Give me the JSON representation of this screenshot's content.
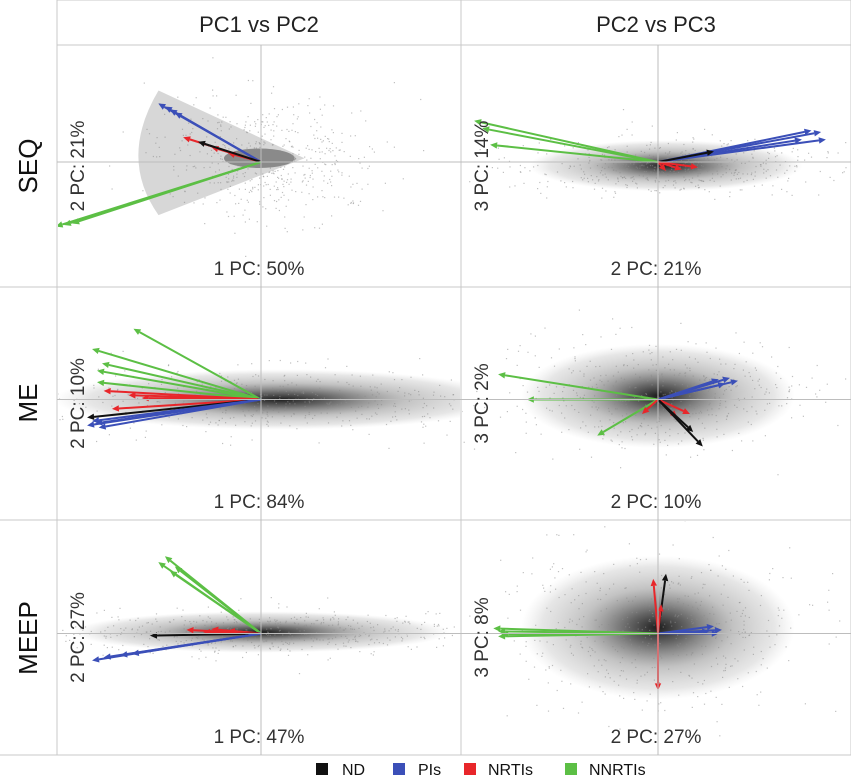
{
  "figure": {
    "columns": [
      "PC1 vs PC2",
      "PC2 vs PC3"
    ],
    "rows": [
      "SEQ",
      "ME",
      "MEEP"
    ]
  },
  "legend": {
    "items": [
      {
        "label": "ND",
        "color": "#111111"
      },
      {
        "label": "PIs",
        "color": "#3b4fb8"
      },
      {
        "label": "NRTIs",
        "color": "#e8262a"
      },
      {
        "label": "NNRTIs",
        "color": "#5cbf45"
      }
    ]
  },
  "colors": {
    "ND": "#111111",
    "PIs": "#3b4fb8",
    "NRTIs": "#e8262a",
    "NNRTIs": "#5cbf45",
    "cloud": "#9a9a9a",
    "grid": "#bdbdbd"
  },
  "chart_data": [
    {
      "type": "scatter",
      "panel": "SEQ / PC1 vs PC2",
      "row": "SEQ",
      "column": "PC1 vs PC2",
      "xlabel": "1 PC: 50%",
      "ylabel": "2 PC: 21%",
      "xlim": [
        -1,
        1
      ],
      "ylim": [
        -1,
        1
      ],
      "grid": true,
      "cloud": {
        "cx": 0.05,
        "cy": 0.05,
        "sx": 0.32,
        "sy": 0.38,
        "shape": "wedge"
      },
      "vectors": [
        {
          "group": "PIs",
          "x": -0.62,
          "y": 0.78
        },
        {
          "group": "PIs",
          "x": -0.58,
          "y": 0.74
        },
        {
          "group": "PIs",
          "x": -0.55,
          "y": 0.7
        },
        {
          "group": "PIs",
          "x": -0.52,
          "y": 0.66
        },
        {
          "group": "NRTIs",
          "x": -0.47,
          "y": 0.33
        },
        {
          "group": "NRTIs",
          "x": -0.3,
          "y": 0.2
        },
        {
          "group": "NRTIs",
          "x": -0.2,
          "y": 0.12
        },
        {
          "group": "ND",
          "x": -0.38,
          "y": 0.27
        },
        {
          "group": "NNRTIs",
          "x": -1.24,
          "y": -0.86
        },
        {
          "group": "NNRTIs",
          "x": -1.19,
          "y": -0.84
        },
        {
          "group": "NNRTIs",
          "x": -1.14,
          "y": -0.82
        }
      ]
    },
    {
      "type": "scatter",
      "panel": "SEQ / PC2 vs PC3",
      "row": "SEQ",
      "column": "PC2 vs PC3",
      "xlabel": "2 PC: 21%",
      "ylabel": "3 PC: 14%",
      "xlim": [
        -1,
        1
      ],
      "ylim": [
        -1,
        1
      ],
      "grid": true,
      "cloud": {
        "cx": 0.05,
        "cy": -0.05,
        "sx": 0.45,
        "sy": 0.18,
        "shape": "ellipse"
      },
      "vectors": [
        {
          "group": "NNRTIs",
          "x": -1.15,
          "y": 0.55
        },
        {
          "group": "NNRTIs",
          "x": -1.1,
          "y": 0.45
        },
        {
          "group": "NNRTIs",
          "x": -1.05,
          "y": 0.23
        },
        {
          "group": "PIs",
          "x": 0.96,
          "y": 0.42
        },
        {
          "group": "PIs",
          "x": 1.02,
          "y": 0.4
        },
        {
          "group": "PIs",
          "x": 0.9,
          "y": 0.3
        },
        {
          "group": "PIs",
          "x": 1.05,
          "y": 0.3
        },
        {
          "group": "ND",
          "x": 0.35,
          "y": 0.14
        },
        {
          "group": "NRTIs",
          "x": 0.15,
          "y": -0.1
        },
        {
          "group": "NRTIs",
          "x": 0.25,
          "y": -0.07
        },
        {
          "group": "NRTIs",
          "x": 0.05,
          "y": -0.12
        }
      ]
    },
    {
      "type": "scatter",
      "panel": "ME / PC1 vs PC2",
      "row": "ME",
      "column": "PC1 vs PC2",
      "xlabel": "1 PC: 84%",
      "ylabel": "2 PC: 10%",
      "xlim": [
        -1,
        1
      ],
      "ylim": [
        -1,
        1
      ],
      "grid": true,
      "cloud": {
        "cx": 0.12,
        "cy": 0.0,
        "sx": 0.72,
        "sy": 0.22,
        "shape": "ellipse"
      },
      "vectors": [
        {
          "group": "NNRTIs",
          "x": -0.77,
          "y": 0.98
        },
        {
          "group": "NNRTIs",
          "x": -1.02,
          "y": 0.7
        },
        {
          "group": "NNRTIs",
          "x": -0.99,
          "y": 0.4
        },
        {
          "group": "NNRTIs",
          "x": -0.99,
          "y": 0.24
        },
        {
          "group": "NNRTIs",
          "x": -0.96,
          "y": 0.5
        },
        {
          "group": "NRTIs",
          "x": -0.95,
          "y": 0.12
        },
        {
          "group": "NRTIs",
          "x": -0.8,
          "y": 0.06
        },
        {
          "group": "NRTIs",
          "x": -0.9,
          "y": -0.13
        },
        {
          "group": "NRTIs",
          "x": -0.72,
          "y": 0.02
        },
        {
          "group": "ND",
          "x": -1.05,
          "y": -0.25
        },
        {
          "group": "PIs",
          "x": -1.02,
          "y": -0.3
        },
        {
          "group": "PIs",
          "x": -1.0,
          "y": -0.33
        },
        {
          "group": "PIs",
          "x": -1.05,
          "y": -0.36
        },
        {
          "group": "PIs",
          "x": -0.98,
          "y": -0.39
        }
      ]
    },
    {
      "type": "scatter",
      "panel": "ME / PC2 vs PC3",
      "row": "ME",
      "column": "PC2 vs PC3",
      "xlabel": "2 PC: 10%",
      "ylabel": "3 PC: 2%",
      "xlim": [
        -1,
        1
      ],
      "ylim": [
        -1,
        1
      ],
      "grid": true,
      "cloud": {
        "cx": 0.0,
        "cy": 0.05,
        "sx": 0.45,
        "sy": 0.38,
        "shape": "ellipse"
      },
      "vectors": [
        {
          "group": "NNRTIs",
          "x": -1.0,
          "y": 0.35
        },
        {
          "group": "NNRTIs",
          "x": -0.82,
          "y": 0.0
        },
        {
          "group": "NNRTIs",
          "x": -0.38,
          "y": -0.5
        },
        {
          "group": "PIs",
          "x": 0.45,
          "y": 0.3
        },
        {
          "group": "PIs",
          "x": 0.5,
          "y": 0.26
        },
        {
          "group": "PIs",
          "x": 0.42,
          "y": 0.22
        },
        {
          "group": "PIs",
          "x": 0.38,
          "y": 0.28
        },
        {
          "group": "NRTIs",
          "x": 0.2,
          "y": -0.2
        },
        {
          "group": "NRTIs",
          "x": 0.12,
          "y": -0.25
        },
        {
          "group": "NRTIs",
          "x": -0.1,
          "y": -0.2
        },
        {
          "group": "ND",
          "x": 0.28,
          "y": -0.65
        },
        {
          "group": "ND",
          "x": 0.22,
          "y": -0.45
        }
      ]
    },
    {
      "type": "scatter",
      "panel": "MEEP / PC1 vs PC2",
      "row": "MEEP",
      "column": "PC1 vs PC2",
      "xlabel": "1 PC: 47%",
      "ylabel": "2 PC: 27%",
      "xlim": [
        -1,
        1
      ],
      "ylim": [
        -1,
        1
      ],
      "grid": true,
      "cloud": {
        "cx": 0.0,
        "cy": 0.02,
        "sx": 0.6,
        "sy": 0.15,
        "shape": "ellipse"
      },
      "vectors": [
        {
          "group": "NNRTIs",
          "x": -0.58,
          "y": 1.06
        },
        {
          "group": "NNRTIs",
          "x": -0.62,
          "y": 0.98
        },
        {
          "group": "NNRTIs",
          "x": -0.52,
          "y": 0.92
        },
        {
          "group": "NNRTIs",
          "x": -0.55,
          "y": 0.86
        },
        {
          "group": "NRTIs",
          "x": -0.45,
          "y": 0.05
        },
        {
          "group": "NRTIs",
          "x": -0.3,
          "y": 0.06
        },
        {
          "group": "NRTIs",
          "x": -0.2,
          "y": 0.04
        },
        {
          "group": "NRTIs",
          "x": -0.35,
          "y": 0.02
        },
        {
          "group": "ND",
          "x": -0.67,
          "y": -0.03
        },
        {
          "group": "PIs",
          "x": -1.02,
          "y": -0.37
        },
        {
          "group": "PIs",
          "x": -0.95,
          "y": -0.33
        },
        {
          "group": "PIs",
          "x": -0.85,
          "y": -0.3
        },
        {
          "group": "PIs",
          "x": -0.78,
          "y": -0.28
        }
      ]
    },
    {
      "type": "scatter",
      "panel": "MEEP / PC2 vs PC3",
      "row": "MEEP",
      "column": "PC2 vs PC3",
      "xlabel": "2 PC: 27%",
      "ylabel": "3 PC: 8%",
      "xlim": [
        -1,
        1
      ],
      "ylim": [
        -1,
        1
      ],
      "grid": true,
      "cloud": {
        "cx": 0.0,
        "cy": 0.08,
        "sx": 0.45,
        "sy": 0.52,
        "shape": "ellipse"
      },
      "vectors": [
        {
          "group": "NNRTIs",
          "x": -1.03,
          "y": 0.07
        },
        {
          "group": "NNRTIs",
          "x": -1.0,
          "y": 0.03
        },
        {
          "group": "NNRTIs",
          "x": -0.98,
          "y": -0.01
        },
        {
          "group": "NNRTIs",
          "x": -1.0,
          "y": -0.04
        },
        {
          "group": "PIs",
          "x": 0.35,
          "y": 0.1
        },
        {
          "group": "PIs",
          "x": 0.4,
          "y": 0.05
        },
        {
          "group": "PIs",
          "x": 0.38,
          "y": 0.0
        },
        {
          "group": "PIs",
          "x": 0.32,
          "y": 0.03
        },
        {
          "group": "ND",
          "x": 0.05,
          "y": 0.82
        },
        {
          "group": "NRTIs",
          "x": -0.03,
          "y": 0.75
        },
        {
          "group": "NRTIs",
          "x": 0.0,
          "y": -0.78
        },
        {
          "group": "NRTIs",
          "x": 0.02,
          "y": 0.4
        }
      ]
    }
  ]
}
